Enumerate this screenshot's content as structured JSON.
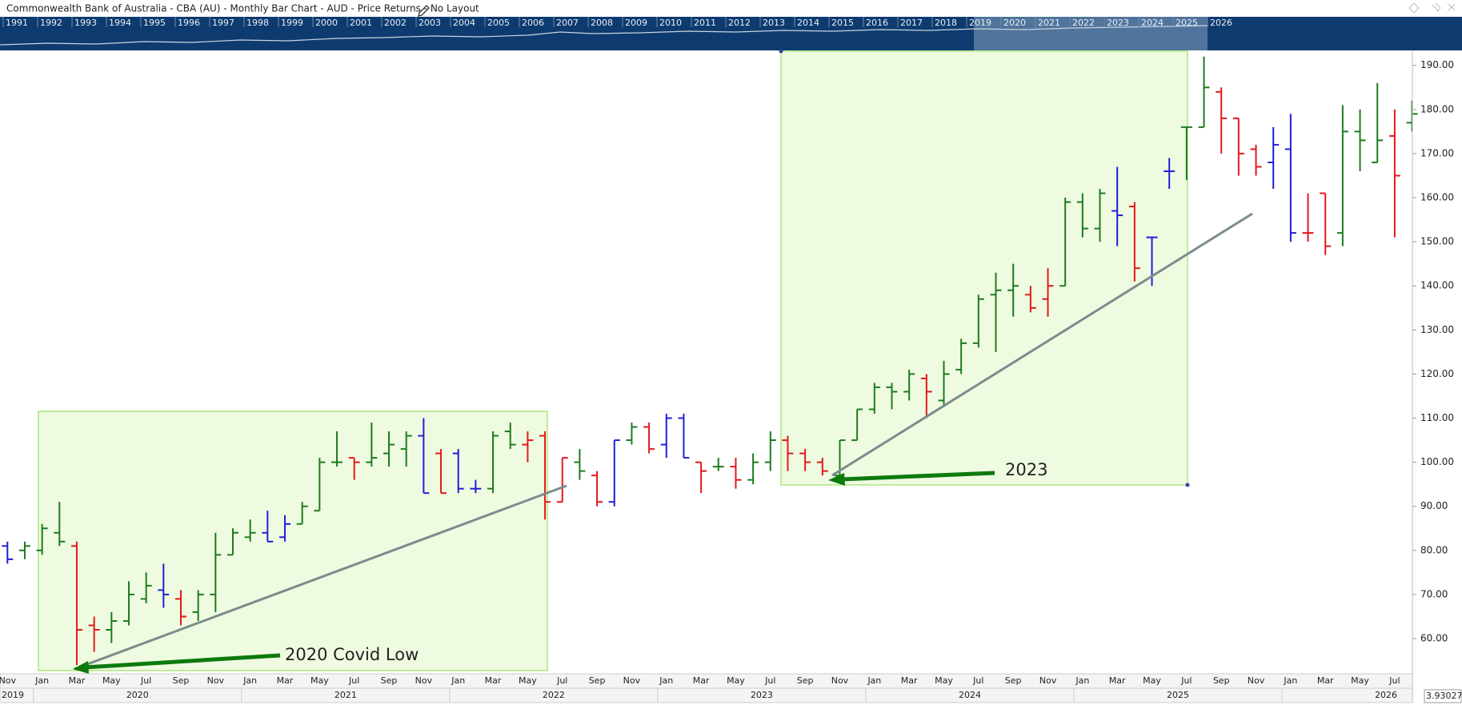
{
  "header": {
    "title": "Commonwealth Bank of Australia - CBA (AU) - Monthly Bar Chart - AUD - Price Returns - No Layout"
  },
  "navigator": {
    "years": [
      "1991",
      "1992",
      "1993",
      "1994",
      "1995",
      "1996",
      "1997",
      "1998",
      "1999",
      "2000",
      "2001",
      "2002",
      "2003",
      "2004",
      "2005",
      "2006",
      "2007",
      "2008",
      "2009",
      "2010",
      "2011",
      "2012",
      "2013",
      "2014",
      "2015",
      "2016",
      "2017",
      "2018",
      "2019",
      "2020",
      "2021",
      "2022",
      "2023",
      "2024",
      "2025",
      "2026"
    ]
  },
  "chart_data": {
    "type": "ohlc",
    "categories": [
      "Nov",
      null,
      "Jan",
      null,
      "Mar",
      null,
      "May",
      null,
      "Jul",
      null,
      "Sep",
      null,
      "Nov",
      null,
      "Jan",
      null,
      "Mar",
      null,
      "May",
      null,
      "Jul",
      null,
      "Sep",
      null,
      "Nov",
      null,
      "Jan",
      null,
      "Mar",
      null,
      "May",
      null,
      "Jul",
      null,
      "Sep",
      null,
      "Nov",
      null,
      "Jan",
      null,
      "Mar",
      null,
      "May",
      null,
      "Jul",
      null,
      "Sep",
      null,
      "Nov",
      null,
      "Jan",
      null,
      "Mar",
      null,
      "May",
      null,
      "Jul",
      null,
      "Sep",
      null,
      "Nov",
      null,
      "Jan",
      null,
      "Mar",
      null,
      "May",
      null,
      "Jul",
      null,
      "Sep",
      null,
      "Nov",
      null,
      "Jan",
      null,
      "Mar",
      null,
      "May",
      null,
      "Jul",
      null
    ],
    "year_labels": [
      "2019",
      "2020",
      "2021",
      "2022",
      "2023",
      "2024",
      "2025",
      "2026"
    ],
    "open": [
      81,
      80,
      80,
      84,
      81,
      63,
      62,
      64,
      69,
      71,
      69,
      66,
      70,
      79,
      83,
      84,
      83,
      86,
      89,
      100,
      101,
      100,
      102,
      103,
      106,
      102,
      102,
      94,
      94,
      107,
      104,
      106,
      91,
      100,
      97,
      91,
      105,
      108,
      104,
      110,
      100,
      99,
      99,
      96,
      100,
      105,
      102,
      100,
      97,
      105,
      112,
      117,
      116,
      119,
      114,
      121,
      127,
      138,
      139,
      138,
      137,
      140,
      159,
      153,
      157,
      158,
      151,
      166,
      176,
      176,
      184,
      178,
      171,
      168,
      171,
      152,
      161,
      152,
      175,
      168,
      174,
      177
    ],
    "high": [
      82,
      82,
      86,
      91,
      82,
      65,
      66,
      73,
      75,
      77,
      71,
      71,
      84,
      85,
      87,
      89,
      88,
      91,
      101,
      107,
      101,
      109,
      107,
      107,
      110,
      103,
      103,
      96,
      107,
      109,
      107,
      107,
      101,
      103,
      98,
      105,
      109,
      109,
      111,
      111,
      100,
      101,
      101,
      102,
      107,
      106,
      103,
      101,
      105,
      112,
      118,
      118,
      121,
      120,
      123,
      128,
      138,
      143,
      145,
      140,
      144,
      160,
      161,
      162,
      167,
      159,
      151,
      169,
      176,
      192,
      185,
      178,
      172,
      176,
      179,
      161,
      161,
      181,
      180,
      186,
      180,
      182
    ],
    "low": [
      77,
      78,
      79,
      81,
      54,
      57,
      59,
      63,
      68,
      67,
      63,
      64,
      66,
      79,
      82,
      82,
      82,
      86,
      89,
      99,
      96,
      99,
      99,
      99,
      93,
      93,
      93,
      93,
      93,
      103,
      100,
      87,
      91,
      96,
      90,
      90,
      104,
      102,
      101,
      101,
      93,
      98,
      94,
      95,
      98,
      98,
      98,
      97,
      96,
      105,
      111,
      112,
      114,
      110,
      113,
      120,
      126,
      125,
      133,
      134,
      133,
      140,
      151,
      150,
      149,
      141,
      140,
      162,
      164,
      176,
      170,
      165,
      165,
      162,
      150,
      150,
      147,
      149,
      166,
      168,
      151,
      175
    ],
    "close": [
      78,
      81,
      85,
      82,
      62,
      62,
      64,
      70,
      72,
      70,
      65,
      70,
      79,
      84,
      84,
      82,
      86,
      90,
      100,
      100,
      100,
      101,
      104,
      106,
      93,
      93,
      94,
      94,
      106,
      104,
      105,
      91,
      101,
      98,
      91,
      105,
      108,
      103,
      110,
      101,
      98,
      99,
      96,
      100,
      105,
      102,
      100,
      98,
      105,
      112,
      117,
      116,
      120,
      116,
      120,
      127,
      137,
      139,
      140,
      135,
      140,
      159,
      153,
      161,
      156,
      144,
      151,
      166,
      176,
      185,
      178,
      170,
      167,
      172,
      152,
      152,
      149,
      175,
      173,
      173,
      165,
      179
    ],
    "bar_colors": [
      "#1f1fd8",
      "#1e7b1e",
      "#1e7b1e",
      "#1e7b1e",
      "#e3191b",
      "#e3191b",
      "#1e7b1e",
      "#1e7b1e",
      "#1e7b1e",
      "#1f1fd8",
      "#e3191b",
      "#1e7b1e",
      "#1e7b1e",
      "#1e7b1e",
      "#1e7b1e",
      "#1f1fd8",
      "#1f1fd8",
      "#1e7b1e",
      "#1e7b1e",
      "#1e7b1e",
      "#e3191b",
      "#1e7b1e",
      "#1e7b1e",
      "#1e7b1e",
      "#1f1fd8",
      "#e3191b",
      "#1f1fd8",
      "#1f1fd8",
      "#1e7b1e",
      "#1e7b1e",
      "#e3191b",
      "#e3191b",
      "#e3191b",
      "#1e7b1e",
      "#e3191b",
      "#1f1fd8",
      "#1e7b1e",
      "#e3191b",
      "#1f1fd8",
      "#1f1fd8",
      "#e3191b",
      "#1e7b1e",
      "#e3191b",
      "#1e7b1e",
      "#1e7b1e",
      "#e3191b",
      "#e3191b",
      "#e3191b",
      "#1e7b1e",
      "#1e7b1e",
      "#1e7b1e",
      "#1e7b1e",
      "#1e7b1e",
      "#e3191b",
      "#1e7b1e",
      "#1e7b1e",
      "#1e7b1e",
      "#1e7b1e",
      "#1e7b1e",
      "#e3191b",
      "#e3191b",
      "#1e7b1e",
      "#1e7b1e",
      "#1e7b1e",
      "#1f1fd8",
      "#e3191b",
      "#1f1fd8",
      "#1f1fd8",
      "#1e7b1e",
      "#1e7b1e",
      "#e3191b",
      "#e3191b",
      "#e3191b",
      "#1f1fd8",
      "#1f1fd8",
      "#e3191b",
      "#e3191b",
      "#1e7b1e",
      "#1e7b1e",
      "#1e7b1e",
      "#e3191b",
      "#1e7b1e"
    ],
    "ylim": [
      52.2,
      193.4
    ],
    "yticks": [
      {
        "value": 60,
        "label": "60.00"
      },
      {
        "value": 70,
        "label": "70.00"
      },
      {
        "value": 80,
        "label": "80.00"
      },
      {
        "value": 90,
        "label": "90.00"
      },
      {
        "value": 100,
        "label": "100.00"
      },
      {
        "value": 110,
        "label": "110.00"
      },
      {
        "value": 120,
        "label": "120.00"
      },
      {
        "value": 130,
        "label": "130.00"
      },
      {
        "value": 140,
        "label": "140.00"
      },
      {
        "value": 150,
        "label": "150.00"
      },
      {
        "value": 160,
        "label": "160.00"
      },
      {
        "value": 170,
        "label": "170.00"
      },
      {
        "value": 180,
        "label": "180.00"
      },
      {
        "value": 190,
        "label": "190.00"
      }
    ],
    "annotations": [
      "2020 Covid Low",
      "2023"
    ],
    "price_tag": "3.930275"
  }
}
